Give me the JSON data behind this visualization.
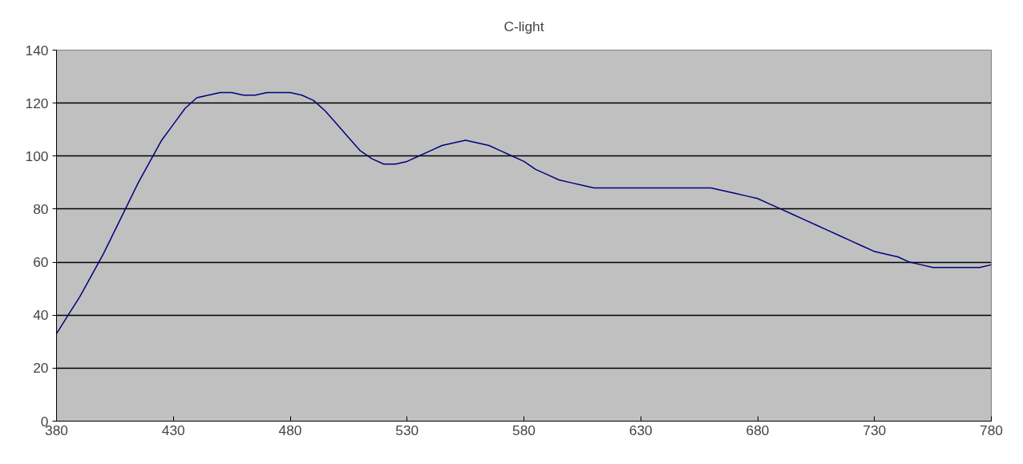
{
  "chart_data": {
    "type": "line",
    "title": "C-light",
    "x": [
      380,
      385,
      390,
      395,
      400,
      405,
      410,
      415,
      420,
      425,
      430,
      435,
      440,
      445,
      450,
      455,
      460,
      465,
      470,
      475,
      480,
      485,
      490,
      495,
      500,
      505,
      510,
      515,
      520,
      525,
      530,
      535,
      540,
      545,
      550,
      555,
      560,
      565,
      570,
      575,
      580,
      585,
      590,
      595,
      600,
      605,
      610,
      615,
      620,
      625,
      630,
      635,
      640,
      645,
      650,
      655,
      660,
      665,
      670,
      675,
      680,
      685,
      690,
      695,
      700,
      705,
      710,
      715,
      720,
      725,
      730,
      735,
      740,
      745,
      750,
      755,
      760,
      765,
      770,
      775,
      780
    ],
    "series": [
      {
        "color": "#000080",
        "values": [
          33,
          40,
          47,
          55,
          63,
          72,
          81,
          90,
          98,
          106,
          112,
          118,
          122,
          123,
          124,
          124,
          123,
          123,
          124,
          124,
          124,
          123,
          121,
          117,
          112,
          107,
          102,
          99,
          97,
          97,
          98,
          100,
          102,
          104,
          105,
          106,
          105,
          104,
          102,
          100,
          98,
          95,
          93,
          91,
          90,
          89,
          88,
          88,
          88,
          88,
          88,
          88,
          88,
          88,
          88,
          88,
          88,
          87,
          86,
          85,
          84,
          82,
          80,
          78,
          76,
          74,
          72,
          70,
          68,
          66,
          64,
          63,
          62,
          60,
          59,
          58,
          58,
          58,
          58,
          58,
          59
        ]
      }
    ],
    "xlim": [
      380,
      780
    ],
    "xticks": [
      380,
      430,
      480,
      530,
      580,
      630,
      680,
      730,
      780
    ],
    "ylim": [
      0,
      140
    ],
    "yticks": [
      0,
      20,
      40,
      60,
      80,
      100,
      120,
      140
    ],
    "grid": "y",
    "marker": "none",
    "line_style": "solid"
  }
}
